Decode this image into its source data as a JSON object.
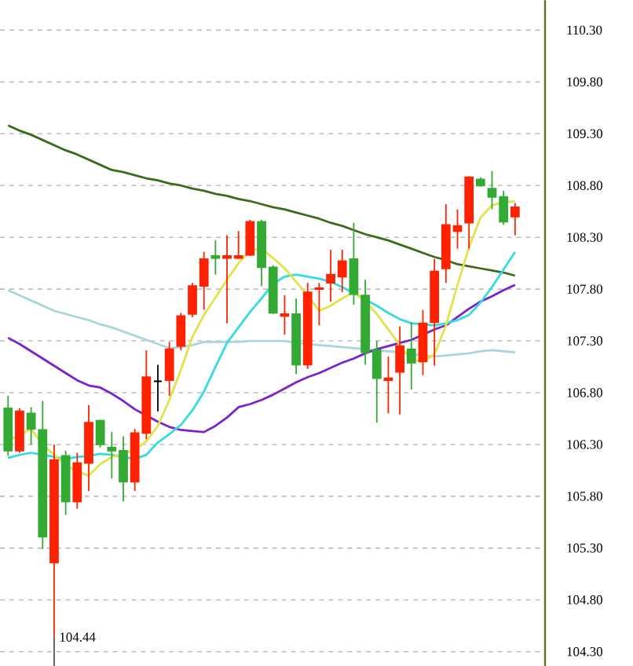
{
  "chart_data": {
    "type": "candlestick",
    "categories": [
      null,
      null,
      null,
      null,
      null,
      null,
      null,
      null,
      null,
      null,
      null,
      null,
      null,
      null,
      null,
      null,
      null,
      null,
      null,
      null,
      null,
      null,
      null,
      null,
      null,
      null,
      null,
      null,
      null,
      null,
      null,
      null,
      null,
      null,
      null,
      null,
      null,
      null,
      null,
      null,
      null,
      null,
      null,
      null,
      null
    ],
    "ohlc": [
      [
        106.65,
        106.77,
        106.19,
        106.24
      ],
      [
        106.24,
        106.65,
        106.22,
        106.62
      ],
      [
        106.6,
        106.66,
        106.3,
        106.45
      ],
      [
        106.44,
        106.72,
        105.29,
        105.41
      ],
      [
        105.16,
        106.3,
        104.44,
        106.15
      ],
      [
        106.19,
        106.24,
        105.62,
        105.75
      ],
      [
        105.75,
        106.22,
        105.68,
        106.12
      ],
      [
        106.12,
        106.68,
        105.85,
        106.51
      ],
      [
        106.53,
        106.54,
        106.27,
        106.3
      ],
      [
        106.27,
        106.42,
        105.97,
        106.24
      ],
      [
        106.24,
        106.38,
        105.75,
        105.94
      ],
      [
        105.94,
        106.45,
        105.85,
        106.41
      ],
      [
        106.41,
        107.21,
        106.35,
        106.95
      ],
      [
        106.91,
        107.07,
        106.62,
        106.91
      ],
      [
        106.92,
        107.29,
        106.77,
        107.22
      ],
      [
        107.25,
        107.57,
        107.21,
        107.54
      ],
      [
        107.56,
        107.86,
        107.53,
        107.83
      ],
      [
        107.83,
        108.16,
        107.6,
        108.09
      ],
      [
        108.12,
        108.27,
        107.94,
        108.1
      ],
      [
        108.1,
        108.32,
        107.47,
        108.12
      ],
      [
        108.1,
        108.36,
        108.09,
        108.12
      ],
      [
        108.13,
        108.47,
        108.12,
        108.45
      ],
      [
        108.45,
        108.47,
        107.83,
        108.01
      ],
      [
        108.01,
        108.03,
        107.56,
        107.57
      ],
      [
        107.54,
        107.74,
        107.36,
        107.56
      ],
      [
        107.56,
        107.71,
        106.98,
        107.07
      ],
      [
        107.07,
        107.86,
        107.03,
        107.77
      ],
      [
        107.8,
        107.86,
        107.45,
        107.81
      ],
      [
        107.86,
        108.18,
        107.68,
        107.94
      ],
      [
        107.92,
        108.18,
        107.77,
        108.07
      ],
      [
        108.09,
        108.44,
        107.65,
        107.75
      ],
      [
        107.74,
        107.89,
        107.07,
        107.19
      ],
      [
        107.21,
        107.3,
        106.51,
        106.94
      ],
      [
        106.92,
        107.15,
        106.6,
        106.94
      ],
      [
        107.0,
        107.44,
        106.59,
        107.25
      ],
      [
        107.22,
        107.48,
        106.83,
        107.09
      ],
      [
        107.1,
        107.6,
        106.97,
        107.47
      ],
      [
        107.48,
        108.09,
        107.06,
        107.97
      ],
      [
        108.0,
        108.62,
        107.86,
        108.42
      ],
      [
        108.36,
        108.57,
        108.19,
        108.41
      ],
      [
        108.44,
        108.89,
        108.19,
        108.88
      ],
      [
        108.86,
        108.88,
        108.79,
        108.8
      ],
      [
        108.77,
        108.94,
        108.57,
        108.69
      ],
      [
        108.69,
        108.75,
        108.42,
        108.45
      ],
      [
        108.5,
        108.63,
        108.32,
        108.59
      ]
    ],
    "colors": [
      "#33aa33",
      "#ff2200",
      "#33aa33",
      "#33aa33",
      "#ff2200",
      "#33aa33",
      "#ff2200",
      "#ff2200",
      "#33aa33",
      "#33aa33",
      "#33aa33",
      "#ff2200",
      "#ff2200",
      "#000000",
      "#ff2200",
      "#ff2200",
      "#ff2200",
      "#ff2200",
      "#33aa33",
      "#ff2200",
      "#ff2200",
      "#ff2200",
      "#33aa33",
      "#33aa33",
      "#ff2200",
      "#33aa33",
      "#ff2200",
      "#ff2200",
      "#ff2200",
      "#ff2200",
      "#33aa33",
      "#33aa33",
      "#33aa33",
      "#ff2200",
      "#ff2200",
      "#33aa33",
      "#ff2200",
      "#ff2200",
      "#ff2200",
      "#ff2200",
      "#ff2200",
      "#33aa33",
      "#33aa33",
      "#33aa33",
      "#ff2200"
    ],
    "series": [
      {
        "type": "line",
        "color": "#3c6a1c",
        "values": [
          109.38,
          109.33,
          109.29,
          109.24,
          109.19,
          109.14,
          109.1,
          109.05,
          109.0,
          108.95,
          108.93,
          108.9,
          108.87,
          108.85,
          108.82,
          108.8,
          108.77,
          108.75,
          108.72,
          108.7,
          108.67,
          108.65,
          108.62,
          108.59,
          108.57,
          108.54,
          108.51,
          108.48,
          108.44,
          108.41,
          108.37,
          108.33,
          108.3,
          108.27,
          108.23,
          108.19,
          108.15,
          108.11,
          108.08,
          108.04,
          108.02,
          108.0,
          107.98,
          107.96,
          107.93
        ]
      },
      {
        "type": "line",
        "color": "#a8d6da",
        "values": [
          107.79,
          107.74,
          107.69,
          107.64,
          107.59,
          107.56,
          107.53,
          107.5,
          107.46,
          107.43,
          107.39,
          107.35,
          107.31,
          107.27,
          107.23,
          107.24,
          107.26,
          107.29,
          107.29,
          107.29,
          107.29,
          107.3,
          107.3,
          107.3,
          107.3,
          107.28,
          107.27,
          107.26,
          107.25,
          107.24,
          107.23,
          107.22,
          107.21,
          107.2,
          107.19,
          107.17,
          107.16,
          107.15,
          107.16,
          107.17,
          107.18,
          107.2,
          107.21,
          107.2,
          107.19
        ]
      },
      {
        "type": "line",
        "color": "#7a22cc",
        "values": [
          107.33,
          107.27,
          107.2,
          107.13,
          107.06,
          106.99,
          106.92,
          106.87,
          106.85,
          106.79,
          106.72,
          106.64,
          106.58,
          106.52,
          106.47,
          106.44,
          106.43,
          106.42,
          106.48,
          106.56,
          106.66,
          106.69,
          106.73,
          106.78,
          106.84,
          106.9,
          106.95,
          106.99,
          107.04,
          107.09,
          107.13,
          107.18,
          107.22,
          107.25,
          107.28,
          107.31,
          107.36,
          107.41,
          107.45,
          107.53,
          107.61,
          107.68,
          107.73,
          107.79,
          107.84
        ]
      },
      {
        "type": "line",
        "color": "#33dbe3",
        "values": [
          106.17,
          106.2,
          106.22,
          106.2,
          106.18,
          106.16,
          106.18,
          106.19,
          106.21,
          106.2,
          106.18,
          106.16,
          106.2,
          106.32,
          106.4,
          106.49,
          106.63,
          106.81,
          107.05,
          107.28,
          107.43,
          107.58,
          107.71,
          107.85,
          107.92,
          107.94,
          107.92,
          107.9,
          107.87,
          107.82,
          107.76,
          107.7,
          107.64,
          107.57,
          107.51,
          107.47,
          107.46,
          107.45,
          107.47,
          107.5,
          107.55,
          107.67,
          107.82,
          107.99,
          108.16
        ]
      },
      {
        "type": "line",
        "color": "#e2e24a",
        "values": [
          106.34,
          106.39,
          106.45,
          106.3,
          106.2,
          106.1,
          106.04,
          106.0,
          106.11,
          106.18,
          106.21,
          106.25,
          106.33,
          106.48,
          106.73,
          107.02,
          107.34,
          107.55,
          107.72,
          107.89,
          108.05,
          108.17,
          108.19,
          108.1,
          108.0,
          107.87,
          107.74,
          107.59,
          107.64,
          107.71,
          107.77,
          107.68,
          107.56,
          107.41,
          107.26,
          107.12,
          107.1,
          107.17,
          107.45,
          107.84,
          108.2,
          108.49,
          108.61,
          108.64,
          108.65
        ]
      }
    ],
    "ylim": [
      104.16,
      110.59
    ],
    "yticks": [
      {
        "value": 104.3,
        "label": "104.30"
      },
      {
        "value": 104.8,
        "label": "104.80"
      },
      {
        "value": 105.3,
        "label": "105.30"
      },
      {
        "value": 105.8,
        "label": "105.80"
      },
      {
        "value": 106.3,
        "label": "106.30"
      },
      {
        "value": 106.8,
        "label": "106.80"
      },
      {
        "value": 107.3,
        "label": "107.30"
      },
      {
        "value": 107.8,
        "label": "107.80"
      },
      {
        "value": 108.3,
        "label": "108.30"
      },
      {
        "value": 108.8,
        "label": "108.80"
      },
      {
        "value": 109.3,
        "label": "109.30"
      },
      {
        "value": 109.8,
        "label": "109.80"
      },
      {
        "value": 110.3,
        "label": "110.30"
      }
    ],
    "tick_labels": "y",
    "grid": "y",
    "annotations": [
      "104.44"
    ]
  }
}
